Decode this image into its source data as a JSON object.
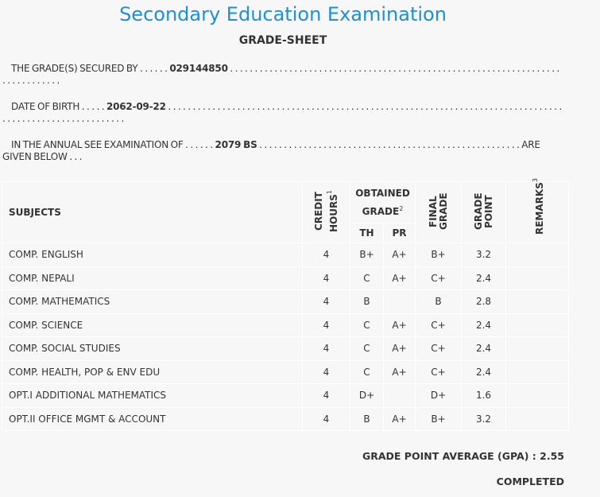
{
  "header": {
    "title": "Secondary Education Examination",
    "subtitle": "GRADE-SHEET"
  },
  "info": [
    {
      "label": "THE GRADE(S) SECURED BY . . . . . .",
      "value": "029144850",
      "trail": ". . . . . . . . . . . . . . . . . . . . . . . . . . . . . . . . . . . . . . . . . . . . . . . . . . . . . . . . . . . . . . . . . . . . . . . . . . . . . . ."
    },
    {
      "label": "DATE OF BIRTH . . . . .",
      "value": "2062-09-22",
      "trail": ". . . . . . . . . . . . . . . . . . . . . . . . . . . . . . . . . . . . . . . . . . . . . . . . . . . . . . . . . . . . . . . . . . . . . . . . . . . . . . . . . . . . . . . . . . . . . . . . . . . . . . . . ."
    },
    {
      "label": "IN THE ANNUAL SEE EXAMINATION OF . . . . . .",
      "value": "2079 BS",
      "trail": ". . . . . . . . . . . . . . . . . . . . . . . . . . . . . . . . . . . . . . . . . . . . . . . . . . . . . ARE GIVEN BELOW . . ."
    }
  ],
  "table": {
    "headers": {
      "subjects": "SUBJECTS",
      "credit_hours": "CREDIT HOURS",
      "credit_note": "1",
      "obtained_grade": "OBTAINED GRADE",
      "obtained_note": "2",
      "th": "TH",
      "pr": "PR",
      "final_grade": "FINAL GRADE",
      "grade_point": "GRADE POINT",
      "remarks": "REMARKS",
      "remarks_note": "3"
    },
    "rows": [
      [
        "COMP. ENGLISH",
        4,
        "B+",
        "A+",
        "B+",
        3.2
      ],
      [
        "COMP. NEPALI",
        4,
        "C",
        "A+",
        "C+",
        2.4
      ],
      [
        "COMP. MATHEMATICS",
        4,
        "B",
        null,
        "B",
        2.8
      ],
      [
        "COMP. SCIENCE",
        4,
        "C",
        "A+",
        "C+",
        2.4
      ],
      [
        "COMP. SOCIAL STUDIES",
        4,
        "C",
        "A+",
        "C+",
        2.4
      ],
      [
        "COMP. HEALTH, POP & ENV EDU",
        4,
        "C",
        "A+",
        "C+",
        2.4
      ],
      [
        "OPT.I ADDITIONAL MATHEMATICS",
        4,
        "D+",
        null,
        "D+",
        1.6
      ],
      [
        "OPT.II OFFICE MGMT & ACCOUNT",
        4,
        "B",
        "A+",
        "B+",
        3.2
      ]
    ]
  },
  "footer": {
    "gpa_label": "GRADE POINT AVERAGE (GPA) :",
    "gpa": 2.55,
    "status": "COMPLETED"
  }
}
